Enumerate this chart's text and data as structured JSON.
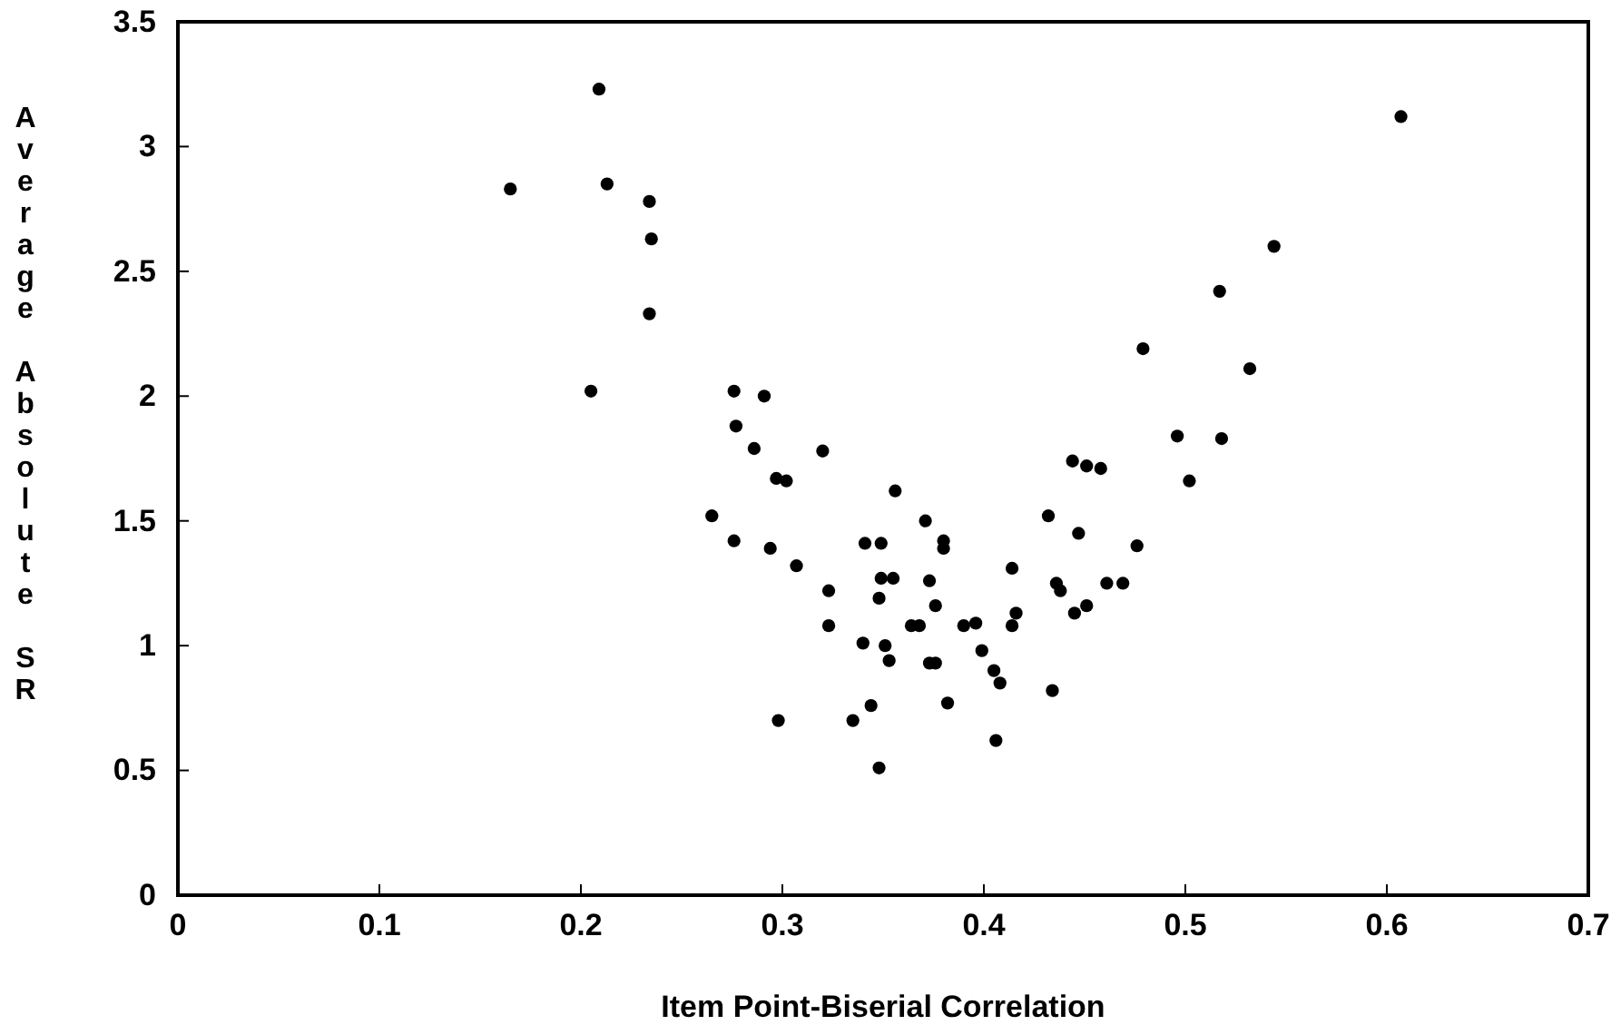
{
  "chart_data": {
    "type": "scatter",
    "xlabel": "Item Point-Biserial Correlation",
    "ylabel": "Average Absolute SR",
    "xlim": [
      0,
      0.7
    ],
    "xticks": [
      0,
      0.1,
      0.2,
      0.3,
      0.4,
      0.5,
      0.6,
      0.7
    ],
    "ylim": [
      0,
      3.5
    ],
    "yticks": [
      0,
      0.5,
      1,
      1.5,
      2,
      2.5,
      3,
      3.5
    ],
    "marker": "circle",
    "series": [
      {
        "color": "#000000",
        "x": [
          0.165,
          0.209,
          0.213,
          0.234,
          0.235,
          0.234,
          0.205,
          0.276,
          0.291,
          0.277,
          0.286,
          0.32,
          0.297,
          0.302,
          0.265,
          0.276,
          0.294,
          0.307,
          0.323,
          0.323,
          0.298,
          0.356,
          0.371,
          0.341,
          0.349,
          0.38,
          0.38,
          0.349,
          0.355,
          0.373,
          0.348,
          0.376,
          0.364,
          0.368,
          0.39,
          0.396,
          0.414,
          0.416,
          0.414,
          0.432,
          0.444,
          0.451,
          0.458,
          0.447,
          0.476,
          0.436,
          0.438,
          0.461,
          0.469,
          0.451,
          0.445,
          0.34,
          0.351,
          0.353,
          0.373,
          0.376,
          0.399,
          0.405,
          0.408,
          0.434,
          0.335,
          0.344,
          0.382,
          0.406,
          0.348,
          0.544,
          0.517,
          0.479,
          0.532,
          0.496,
          0.518,
          0.502,
          0.607
        ],
        "values": [
          2.83,
          3.23,
          2.85,
          2.78,
          2.63,
          2.33,
          2.02,
          2.02,
          2.0,
          1.88,
          1.79,
          1.78,
          1.67,
          1.66,
          1.52,
          1.42,
          1.39,
          1.32,
          1.22,
          1.08,
          0.7,
          1.62,
          1.5,
          1.41,
          1.41,
          1.42,
          1.39,
          1.27,
          1.27,
          1.26,
          1.19,
          1.16,
          1.08,
          1.08,
          1.08,
          1.09,
          1.31,
          1.13,
          1.08,
          1.52,
          1.74,
          1.72,
          1.71,
          1.45,
          1.4,
          1.25,
          1.22,
          1.25,
          1.25,
          1.16,
          1.13,
          1.01,
          1.0,
          0.94,
          0.93,
          0.93,
          0.98,
          0.9,
          0.85,
          0.82,
          0.7,
          0.76,
          0.77,
          0.62,
          0.51,
          2.6,
          2.42,
          2.19,
          2.11,
          1.84,
          1.83,
          1.66,
          3.12
        ]
      }
    ]
  }
}
